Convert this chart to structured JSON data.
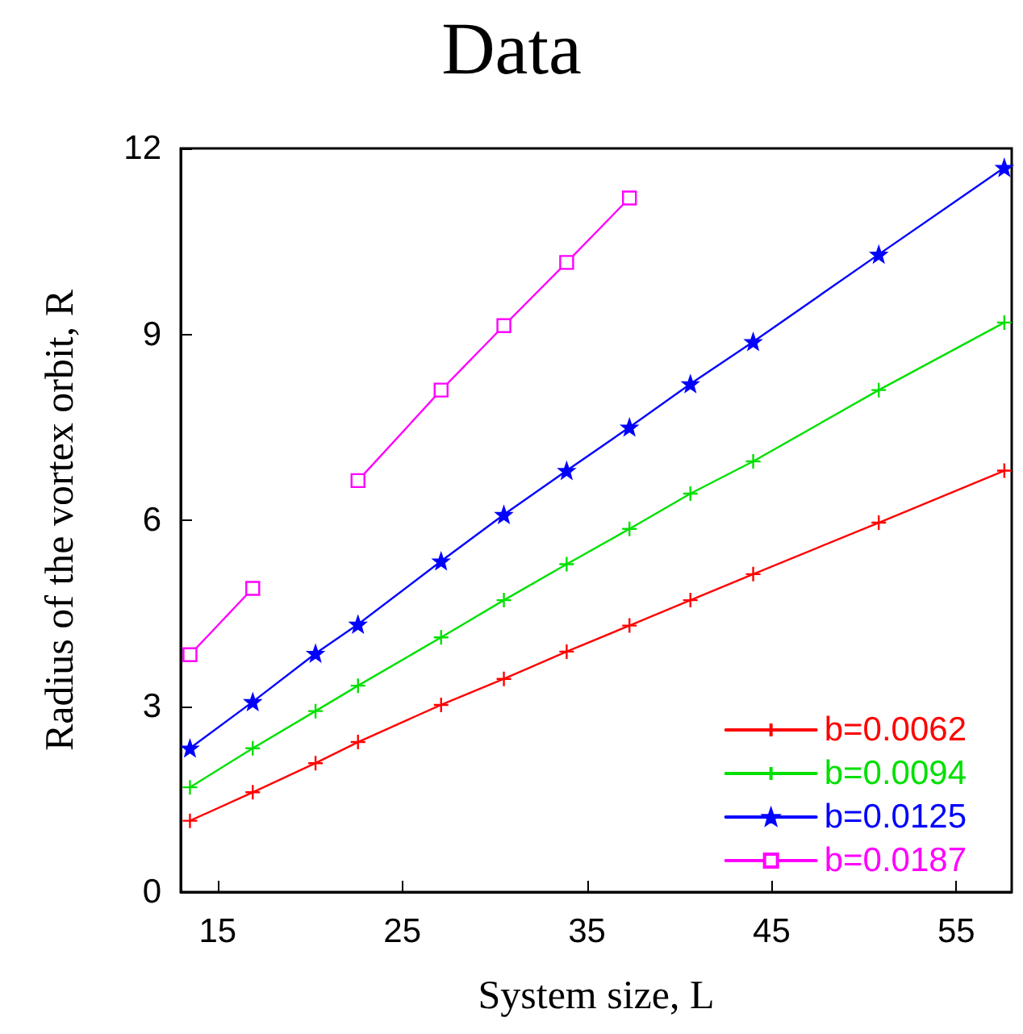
{
  "chart_data": {
    "type": "line",
    "title": "Data",
    "xlabel": "System size, L",
    "ylabel": "Radius of the vortex orbit, R",
    "x": [
      13.5,
      16.9,
      20.3,
      22.6,
      27.1,
      30.5,
      33.9,
      37.3,
      40.6,
      44.0,
      50.8,
      57.6
    ],
    "xlim": [
      13,
      58
    ],
    "xticks": [
      15,
      25,
      35,
      45,
      55
    ],
    "ylim": [
      0,
      12
    ],
    "yticks": [
      0,
      3,
      6,
      9,
      12
    ],
    "grid": false,
    "legend": "bottom right",
    "line_style": "solid",
    "series": [
      {
        "name": "b=0.0062",
        "color": "#ff0000",
        "marker": "cross",
        "values": [
          1.15,
          1.61,
          2.08,
          2.42,
          3.02,
          3.44,
          3.88,
          4.3,
          4.71,
          5.13,
          5.96,
          6.8
        ]
      },
      {
        "name": "b=0.0094",
        "color": "#00e000",
        "marker": "cross",
        "values": [
          1.69,
          2.32,
          2.92,
          3.33,
          4.11,
          4.71,
          5.29,
          5.86,
          6.43,
          6.95,
          8.1,
          9.19
        ]
      },
      {
        "name": "b=0.0125",
        "color": "#0000ff",
        "marker": "star",
        "values": [
          2.32,
          3.07,
          3.85,
          4.32,
          5.34,
          6.09,
          6.8,
          7.5,
          8.2,
          8.88,
          10.29,
          11.69
        ]
      },
      {
        "name": "b=0.0187",
        "color": "#ff00ff",
        "marker": "square",
        "values": [
          3.83,
          4.9,
          null,
          6.64,
          8.1,
          9.14,
          10.16,
          11.2,
          null,
          null,
          null,
          null
        ]
      }
    ]
  }
}
